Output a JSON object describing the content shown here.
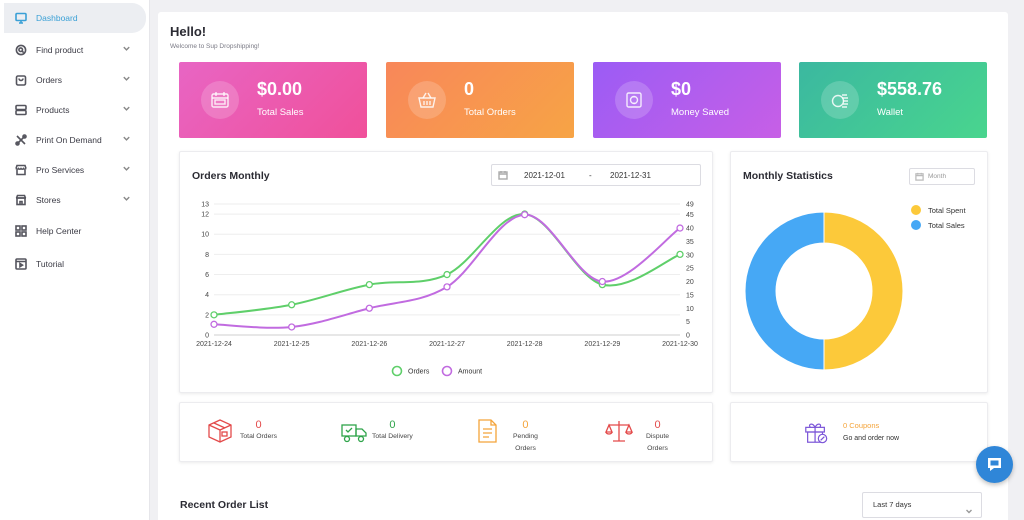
{
  "sidebar": {
    "items": [
      {
        "label": "Dashboard",
        "icon": "monitor-icon",
        "active": true,
        "has_chevron": false
      },
      {
        "label": "Find product",
        "icon": "search-icon",
        "active": false,
        "has_chevron": true
      },
      {
        "label": "Orders",
        "icon": "bag-icon",
        "active": false,
        "has_chevron": true
      },
      {
        "label": "Products",
        "icon": "server-icon",
        "active": false,
        "has_chevron": true
      },
      {
        "label": "Print On Demand",
        "icon": "tools-icon",
        "active": false,
        "has_chevron": true
      },
      {
        "label": "Pro Services",
        "icon": "storefront-icon",
        "active": false,
        "has_chevron": true
      },
      {
        "label": "Stores",
        "icon": "store-icon",
        "active": false,
        "has_chevron": true
      },
      {
        "label": "Help Center",
        "icon": "grid-icon",
        "active": false,
        "has_chevron": false
      },
      {
        "label": "Tutorial",
        "icon": "play-square-icon",
        "active": false,
        "has_chevron": false
      }
    ]
  },
  "header": {
    "title": "Hello!",
    "subtitle": "Welcome to Sup Dropshipping!"
  },
  "stat_cards": [
    {
      "value": "$0.00",
      "label": "Total Sales",
      "icon": "calendar-sale-icon",
      "gradient": [
        "#e865c4",
        "#f0509a"
      ]
    },
    {
      "value": "0",
      "label": "Total Orders",
      "icon": "basket-icon",
      "gradient": [
        "#f8875a",
        "#f7a445"
      ]
    },
    {
      "value": "$0",
      "label": "Money Saved",
      "icon": "safe-icon",
      "gradient": [
        "#9b5cf5",
        "#c75fe6"
      ]
    },
    {
      "value": "$558.76",
      "label": "Wallet",
      "icon": "coins-icon",
      "gradient": [
        "#3bb8a0",
        "#49d58e"
      ]
    }
  ],
  "orders_monthly": {
    "title": "Orders Monthly",
    "date_from": "2021-12-01",
    "date_sep": "-",
    "date_to": "2021-12-31",
    "chart_data": {
      "type": "line",
      "categories": [
        "2021-12-24",
        "2021-12-25",
        "2021-12-26",
        "2021-12-27",
        "2021-12-28",
        "2021-12-29",
        "2021-12-30"
      ],
      "series": [
        {
          "name": "Orders",
          "axis": "left",
          "color": "#5fcf6a",
          "values": [
            2,
            3,
            5,
            6,
            12,
            5,
            8
          ]
        },
        {
          "name": "Amount",
          "axis": "right",
          "color": "#c16be0",
          "values": [
            4,
            3,
            10,
            18,
            45,
            20,
            40
          ]
        }
      ],
      "y_left": {
        "min": 0,
        "max": 13,
        "ticks": [
          0,
          2,
          4,
          6,
          8,
          10,
          12,
          13
        ]
      },
      "y_right": {
        "min": 0,
        "max": 49,
        "ticks": [
          0,
          5,
          10,
          15,
          20,
          25,
          30,
          35,
          40,
          45,
          49
        ]
      },
      "legend_position": "bottom"
    }
  },
  "monthly_statistics": {
    "title": "Monthly Statistics",
    "month_placeholder": "Month",
    "chart_data": {
      "type": "pie",
      "donut": true,
      "slices": [
        {
          "name": "Total Spent",
          "value": 50,
          "color": "#fcc93a"
        },
        {
          "name": "Total Sales",
          "value": 50,
          "color": "#46a8f5"
        }
      ],
      "legend_position": "top-right"
    }
  },
  "order_stats": [
    {
      "value": "0",
      "label_lines": [
        "Total Orders"
      ],
      "icon": "box-icon",
      "color": "#e34a4a"
    },
    {
      "value": "0",
      "label_lines": [
        "Total Delivery"
      ],
      "icon": "truck-icon",
      "color": "#2fa44a"
    },
    {
      "value": "0",
      "label_lines": [
        "Pending",
        "Orders"
      ],
      "icon": "document-icon",
      "color": "#f4a43a"
    },
    {
      "value": "0",
      "label_lines": [
        "Dispute",
        "Orders"
      ],
      "icon": "scale-icon",
      "color": "#e34a4a"
    }
  ],
  "coupons": {
    "title": "0 Coupons",
    "subtitle": "Go and order now",
    "icon": "gift-icon",
    "title_color": "#f4a43a"
  },
  "recent": {
    "title": "Recent Order List",
    "range": "Last 7 days"
  }
}
